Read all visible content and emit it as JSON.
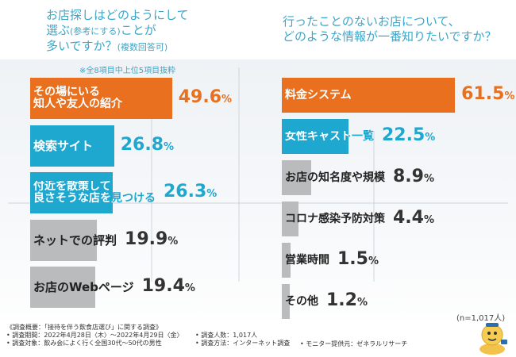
{
  "colors": {
    "orange": "#e8701e",
    "blue": "#1fa8cf",
    "gray": "#b9bbbd",
    "title": "#3aa7c9"
  },
  "left": {
    "question_lines": [
      "お店探しはどのようにして",
      "選ぶ",
      "(参考にする)",
      "ことが",
      "多いですか？",
      "(複数回答可)"
    ],
    "note": "※全8項目中上位5項目抜粋"
  },
  "right": {
    "question_lines": [
      "行ったことのないお店について、",
      "どのような情報が一番知りたいですか？"
    ]
  },
  "sample_size": "(n=1,017人)",
  "footer": {
    "heading": "《調査概要：「接待を伴う飲食店選び」に関する調査》",
    "period": "• 調査期間：2022年4月28日〈木〉〜2022年4月29日〈金〉",
    "target": "• 調査対象：飲み会によく行く全国30代〜50代の男性",
    "respondents": "• 調査人数：1,017人",
    "method": "• 調査方法：インターネット調査",
    "provider": "• モニター提供元：ゼネラルリサーチ"
  },
  "chart_data": [
    {
      "type": "bar",
      "title": "お店探しはどのようにして選ぶ(参考にする)ことが多いですか？(複数回答可)",
      "unit": "%",
      "categories": [
        "その場にいる知人や友人の紹介",
        "検索サイト",
        "付近を散策して良さそうな店を見つける",
        "ネットでの評判",
        "お店のWebページ"
      ],
      "label_lines": [
        [
          "その場にいる",
          "知人や友人の紹介"
        ],
        [
          "検索サイト"
        ],
        [
          "付近を散策して",
          "良さそうな店を見つける"
        ],
        [
          "ネットでの評判"
        ],
        [
          "お店のWebページ"
        ]
      ],
      "values": [
        49.6,
        26.8,
        26.3,
        19.9,
        19.4
      ],
      "value_labels": [
        "49.6",
        "26.8",
        "26.3",
        "19.9",
        "19.4"
      ],
      "bar_colors": [
        "orange",
        "blue",
        "blue",
        "gray",
        "gray"
      ]
    },
    {
      "type": "bar",
      "title": "行ったことのないお店について、どのような情報が一番知りたいですか？",
      "unit": "%",
      "categories": [
        "料金システム",
        "女性キャスト一覧",
        "お店の知名度や規模",
        "コロナ感染予防対策",
        "営業時間",
        "その他"
      ],
      "label_lines": [
        [
          "料金システム"
        ],
        [
          "女性キャスト一覧"
        ],
        [
          "お店の知名度や規模"
        ],
        [
          "コロナ感染予防対策"
        ],
        [
          "営業時間"
        ],
        [
          "その他"
        ]
      ],
      "values": [
        61.5,
        22.5,
        8.9,
        4.4,
        1.5,
        1.2
      ],
      "value_labels": [
        "61.5",
        "22.5",
        "8.9",
        "4.4",
        "1.5",
        "1.2"
      ],
      "bar_colors": [
        "orange",
        "blue",
        "gray",
        "gray",
        "gray",
        "gray"
      ]
    }
  ]
}
